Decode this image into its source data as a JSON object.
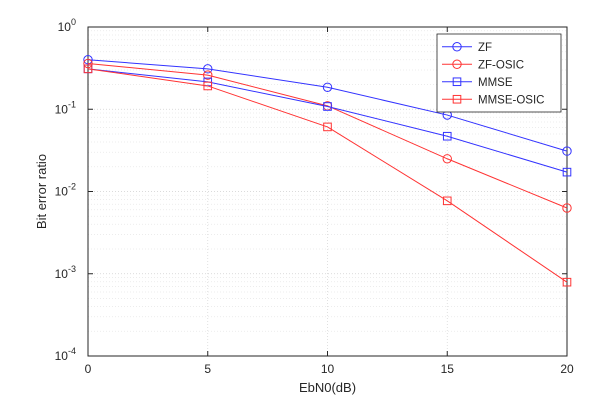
{
  "chart_data": {
    "type": "line",
    "title": "",
    "xlabel": "EbN0(dB)",
    "ylabel": "Bit error ratio",
    "x": [
      0,
      5,
      10,
      15,
      20
    ],
    "xlim": [
      0,
      20
    ],
    "ylim": [
      0.0001,
      1
    ],
    "yscale": "log",
    "grid": true,
    "legend_position": "top-right",
    "x_ticks": [
      {
        "value": 0,
        "label": "0"
      },
      {
        "value": 5,
        "label": "5"
      },
      {
        "value": 10,
        "label": "10"
      },
      {
        "value": 15,
        "label": "15"
      },
      {
        "value": 20,
        "label": "20"
      }
    ],
    "y_ticks": [
      {
        "value": 1,
        "base": "10",
        "exp": "0"
      },
      {
        "value": 0.1,
        "base": "10",
        "exp": "-1"
      },
      {
        "value": 0.01,
        "base": "10",
        "exp": "-2"
      },
      {
        "value": 0.001,
        "base": "10",
        "exp": "-3"
      },
      {
        "value": 0.0001,
        "base": "10",
        "exp": "-4"
      }
    ],
    "series": [
      {
        "name": "ZF",
        "color": "#3333ff",
        "marker": "circle",
        "values": [
          0.4,
          0.31,
          0.185,
          0.085,
          0.031
        ]
      },
      {
        "name": "ZF-OSIC",
        "color": "#ff3333",
        "marker": "circle",
        "values": [
          0.36,
          0.26,
          0.11,
          0.025,
          0.0063
        ]
      },
      {
        "name": "MMSE",
        "color": "#3333ff",
        "marker": "square",
        "values": [
          0.31,
          0.215,
          0.108,
          0.047,
          0.0172
        ]
      },
      {
        "name": "MMSE-OSIC",
        "color": "#ff3333",
        "marker": "square",
        "values": [
          0.31,
          0.192,
          0.061,
          0.0077,
          0.00079
        ]
      }
    ]
  }
}
